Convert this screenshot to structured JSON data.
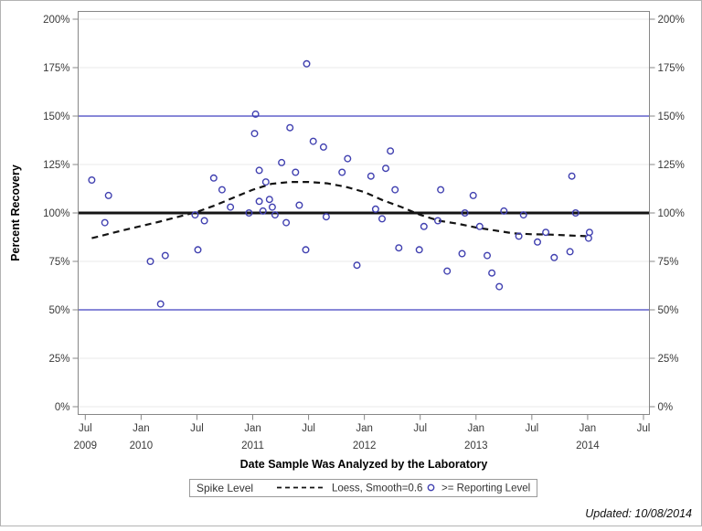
{
  "figure": {
    "y_axis_title": "Percent Recovery",
    "x_axis_title": "Date Sample Was Analyzed by the Laboratory",
    "updated_note": "Updated: 10/08/2014",
    "legend": {
      "title": "Spike Level",
      "loess_label": "Loess, Smooth=0.6",
      "marker_label": ">= Reporting Level"
    }
  },
  "chart_data": {
    "type": "scatter",
    "title": "",
    "xlabel": "Date Sample Was Analyzed by the Laboratory",
    "ylabel": "Percent Recovery",
    "x_encoding": "months since Jul 2009 (0 = Jul 2009, 6 = Jan 2010, ...)",
    "xlim": [
      -0.8,
      60.6
    ],
    "ylim": [
      0,
      200
    ],
    "grid": true,
    "legend_position": "bottom",
    "style": {
      "background": "#ffffff",
      "frame_color": "#878787",
      "gridline_color": "#e8e8e8",
      "tick_text_color": "#3a3a3a",
      "marker_color": "#4040b0",
      "ref_blue": "#4040c0",
      "ref_black": "#141414",
      "loess_color": "#141414"
    },
    "yticks": [
      {
        "v": 0,
        "label": "0%"
      },
      {
        "v": 25,
        "label": "25%"
      },
      {
        "v": 50,
        "label": "50%"
      },
      {
        "v": 75,
        "label": "75%"
      },
      {
        "v": 100,
        "label": "100%"
      },
      {
        "v": 125,
        "label": "125%"
      },
      {
        "v": 150,
        "label": "150%"
      },
      {
        "v": 175,
        "label": "175%"
      },
      {
        "v": 200,
        "label": "200%"
      }
    ],
    "xticks": [
      {
        "m": 0,
        "label": "Jul",
        "year": "2009"
      },
      {
        "m": 6,
        "label": "Jan",
        "year": "2010"
      },
      {
        "m": 12,
        "label": "Jul",
        "year": ""
      },
      {
        "m": 18,
        "label": "Jan",
        "year": "2011"
      },
      {
        "m": 24,
        "label": "Jul",
        "year": ""
      },
      {
        "m": 30,
        "label": "Jan",
        "year": "2012"
      },
      {
        "m": 36,
        "label": "Jul",
        "year": ""
      },
      {
        "m": 42,
        "label": "Jan",
        "year": "2013"
      },
      {
        "m": 48,
        "label": "Jul",
        "year": ""
      },
      {
        "m": 54,
        "label": "Jan",
        "year": "2014"
      },
      {
        "m": 60,
        "label": "Jul",
        "year": ""
      }
    ],
    "reference_lines": [
      {
        "v": 150,
        "color": "#4040c0",
        "width": 1.3,
        "name": "spike-upper-limit-150"
      },
      {
        "v": 50,
        "color": "#4040c0",
        "width": 1.3,
        "name": "spike-lower-limit-50"
      },
      {
        "v": 100,
        "color": "#141414",
        "width": 3,
        "name": "center-line-100"
      }
    ],
    "series": [
      {
        "name": ">= Reporting Level",
        "type": "scatter",
        "marker": "open-circle",
        "color": "#4040b0",
        "points": [
          [
            0.7,
            117
          ],
          [
            2.1,
            95
          ],
          [
            2.5,
            109
          ],
          [
            7.0,
            75
          ],
          [
            8.1,
            53
          ],
          [
            8.6,
            78
          ],
          [
            11.8,
            99
          ],
          [
            12.1,
            81
          ],
          [
            12.8,
            96
          ],
          [
            13.8,
            118
          ],
          [
            14.7,
            112
          ],
          [
            15.6,
            103
          ],
          [
            17.6,
            100
          ],
          [
            18.2,
            141
          ],
          [
            18.3,
            151
          ],
          [
            18.7,
            122
          ],
          [
            18.7,
            106
          ],
          [
            19.1,
            101
          ],
          [
            19.4,
            116
          ],
          [
            19.8,
            107
          ],
          [
            20.1,
            103
          ],
          [
            20.4,
            99
          ],
          [
            21.1,
            126
          ],
          [
            21.6,
            95
          ],
          [
            22.0,
            144
          ],
          [
            22.6,
            121
          ],
          [
            23.0,
            104
          ],
          [
            23.7,
            81
          ],
          [
            23.8,
            177
          ],
          [
            24.5,
            137
          ],
          [
            25.6,
            134
          ],
          [
            25.9,
            98
          ],
          [
            27.6,
            121
          ],
          [
            28.2,
            128
          ],
          [
            29.2,
            73
          ],
          [
            30.7,
            119
          ],
          [
            31.2,
            102
          ],
          [
            31.9,
            97
          ],
          [
            32.3,
            123
          ],
          [
            32.8,
            132
          ],
          [
            33.3,
            112
          ],
          [
            33.7,
            82
          ],
          [
            35.9,
            81
          ],
          [
            36.4,
            93
          ],
          [
            37.9,
            96
          ],
          [
            38.2,
            112
          ],
          [
            38.9,
            70
          ],
          [
            40.5,
            79
          ],
          [
            40.8,
            100
          ],
          [
            41.7,
            109
          ],
          [
            42.4,
            93
          ],
          [
            43.2,
            78
          ],
          [
            43.7,
            69
          ],
          [
            44.5,
            62
          ],
          [
            45.0,
            101
          ],
          [
            46.6,
            88
          ],
          [
            47.1,
            99
          ],
          [
            48.6,
            85
          ],
          [
            49.5,
            90
          ],
          [
            50.4,
            77
          ],
          [
            52.1,
            80
          ],
          [
            52.3,
            119
          ],
          [
            52.7,
            100
          ],
          [
            54.1,
            87
          ],
          [
            54.2,
            90
          ]
        ]
      },
      {
        "name": "Loess, Smooth=0.6",
        "type": "line",
        "line_style": "dashed",
        "color": "#141414",
        "points": [
          [
            0.7,
            87
          ],
          [
            4,
            91
          ],
          [
            8,
            95.5
          ],
          [
            12,
            100.5
          ],
          [
            14,
            104
          ],
          [
            16,
            108
          ],
          [
            18,
            112
          ],
          [
            20,
            115
          ],
          [
            22,
            116
          ],
          [
            24,
            116
          ],
          [
            26,
            115.3
          ],
          [
            28,
            113.5
          ],
          [
            30,
            110.8
          ],
          [
            32,
            106.5
          ],
          [
            34,
            103
          ],
          [
            36,
            99
          ],
          [
            38,
            96
          ],
          [
            40,
            94.5
          ],
          [
            42,
            92.5
          ],
          [
            44,
            91
          ],
          [
            46,
            89.5
          ],
          [
            48,
            89
          ],
          [
            50,
            88.8
          ],
          [
            52,
            88.4
          ],
          [
            53.8,
            88
          ]
        ]
      }
    ]
  }
}
